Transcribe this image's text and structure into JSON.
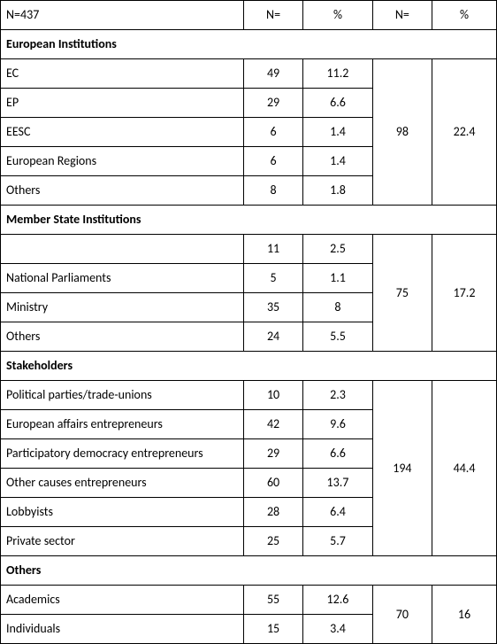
{
  "header": {
    "total_label": "N=437",
    "col_n1": "N=",
    "col_p1": "%",
    "col_n2": "N=",
    "col_p2": "%"
  },
  "sections": [
    {
      "title": "European Institutions",
      "group_n": "98",
      "group_pct": "22.4",
      "rows": [
        {
          "label": "EC",
          "n": "49",
          "pct": "11.2"
        },
        {
          "label": "EP",
          "n": "29",
          "pct": "6.6"
        },
        {
          "label": "EESC",
          "n": "6",
          "pct": "1.4"
        },
        {
          "label": "European Regions",
          "n": "6",
          "pct": "1.4"
        },
        {
          "label": "Others",
          "n": "8",
          "pct": "1.8"
        }
      ]
    },
    {
      "title": "Member State Institutions",
      "group_n": "75",
      "group_pct": "17.2",
      "rows": [
        {
          "label": "",
          "n": "11",
          "pct": "2.5"
        },
        {
          "label": "National Parliaments",
          "n": "5",
          "pct": "1.1"
        },
        {
          "label": "Ministry",
          "n": "35",
          "pct": "8"
        },
        {
          "label": "Others",
          "n": "24",
          "pct": "5.5"
        }
      ]
    },
    {
      "title": "Stakeholders",
      "group_n": "194",
      "group_pct": "44.4",
      "rows": [
        {
          "label": "Political parties/trade-unions",
          "n": "10",
          "pct": "2.3"
        },
        {
          "label": "European affairs entrepreneurs",
          "n": "42",
          "pct": "9.6"
        },
        {
          "label": "Participatory democracy entrepreneurs",
          "n": "29",
          "pct": "6.6"
        },
        {
          "label": "Other causes entrepreneurs",
          "n": "60",
          "pct": "13.7"
        },
        {
          "label": "Lobbyists",
          "n": "28",
          "pct": "6.4"
        },
        {
          "label": "Private sector",
          "n": "25",
          "pct": "5.7"
        }
      ]
    },
    {
      "title": "Others",
      "group_n": "70",
      "group_pct": "16",
      "rows": [
        {
          "label": "Academics",
          "n": "55",
          "pct": "12.6"
        },
        {
          "label": "Individuals",
          "n": "15",
          "pct": "3.4"
        }
      ]
    }
  ]
}
